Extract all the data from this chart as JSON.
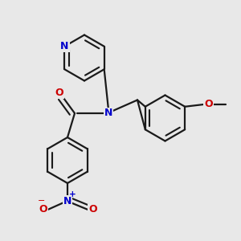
{
  "bg_color": "#e8e8e8",
  "bond_color": "#1a1a1a",
  "N_color": "#0000cc",
  "O_color": "#cc0000",
  "bond_width": 1.6,
  "figsize": [
    3.0,
    3.0
  ],
  "dpi": 100,
  "xlim": [
    0,
    10
  ],
  "ylim": [
    0,
    10
  ]
}
